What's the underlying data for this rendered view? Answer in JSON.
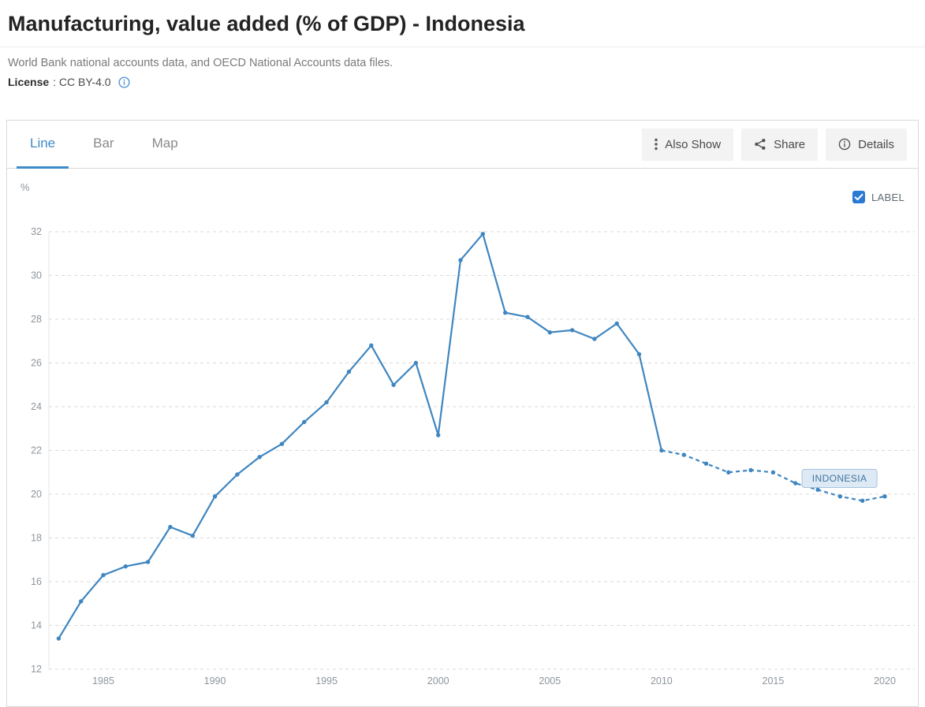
{
  "header": {
    "title": "Manufacturing, value added (% of GDP) - Indonesia",
    "source": "World Bank national accounts data, and OECD National Accounts data files.",
    "license_label": "License",
    "license_value": ": CC BY-4.0",
    "license_info_icon": "info-icon"
  },
  "panel": {
    "tabs": [
      {
        "label": "Line",
        "active": true
      },
      {
        "label": "Bar",
        "active": false
      },
      {
        "label": "Map",
        "active": false
      }
    ],
    "actions": [
      {
        "label": "Also Show",
        "icon": "dots-vertical-icon"
      },
      {
        "label": "Share",
        "icon": "share-icon"
      },
      {
        "label": "Details",
        "icon": "info-icon"
      }
    ],
    "label_checkbox": {
      "label": "LABEL",
      "checked": true,
      "icon": "check-icon"
    }
  },
  "chart_data": {
    "type": "line",
    "title": "Manufacturing, value added (% of GDP) - Indonesia",
    "xlabel": "",
    "ylabel": "%",
    "ylim": [
      12,
      32
    ],
    "yticks": [
      12,
      14,
      16,
      18,
      20,
      22,
      24,
      26,
      28,
      30,
      32
    ],
    "xticks": [
      1985,
      1990,
      1995,
      2000,
      2005,
      2010,
      2015,
      2020
    ],
    "grid": "horizontal-dashed",
    "legend_position": "inline-right",
    "series": [
      {
        "name": "INDONESIA",
        "color": "#3f86c0",
        "solid_until_x": 2010,
        "x": [
          1983,
          1984,
          1985,
          1986,
          1987,
          1988,
          1989,
          1990,
          1991,
          1992,
          1993,
          1994,
          1995,
          1996,
          1997,
          1998,
          1999,
          2000,
          2001,
          2002,
          2003,
          2004,
          2005,
          2006,
          2007,
          2008,
          2009,
          2010,
          2011,
          2012,
          2013,
          2014,
          2015,
          2016,
          2017,
          2018,
          2019,
          2020
        ],
        "values": [
          13.4,
          15.1,
          16.3,
          16.7,
          16.9,
          18.5,
          18.1,
          19.9,
          20.9,
          21.7,
          22.3,
          23.3,
          24.2,
          25.6,
          26.8,
          25.0,
          26.0,
          22.7,
          30.7,
          31.9,
          28.3,
          28.1,
          27.4,
          27.5,
          27.1,
          27.8,
          26.4,
          22.0,
          21.8,
          21.4,
          21.0,
          21.1,
          21.0,
          20.5,
          20.2,
          19.9,
          19.7,
          19.9
        ]
      }
    ],
    "annotation": {
      "label": "INDONESIA"
    }
  },
  "colors": {
    "accent_blue": "#3e8bc8",
    "line_blue": "#3f86c0",
    "checkbox_blue": "#2a7ad4",
    "grid": "#d9d9d9",
    "tick_text": "#8e959b",
    "annotation_fill": "#dde9f4",
    "annotation_border": "#a7c4dd",
    "annotation_text": "#41749f"
  }
}
